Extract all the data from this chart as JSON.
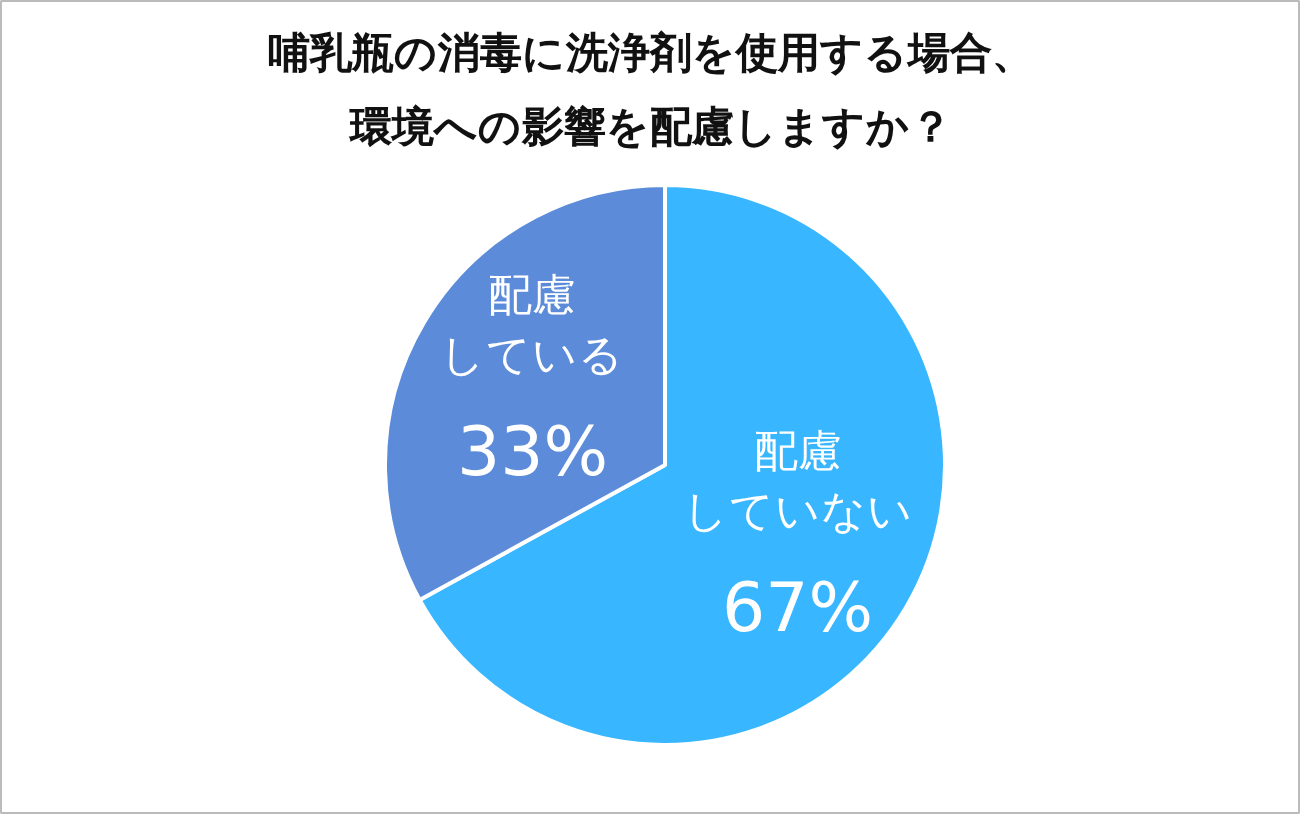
{
  "chart_data": {
    "type": "pie",
    "title": "哺乳瓶の消毒に洗浄剤を使用する場合、環境への影響を配慮しますか？",
    "categories": [
      "配慮していない",
      "配慮している"
    ],
    "values": [
      67,
      33
    ],
    "colors": [
      "#38b6ff",
      "#5b8bd9"
    ],
    "value_labels": [
      "67%",
      "33%"
    ]
  }
}
